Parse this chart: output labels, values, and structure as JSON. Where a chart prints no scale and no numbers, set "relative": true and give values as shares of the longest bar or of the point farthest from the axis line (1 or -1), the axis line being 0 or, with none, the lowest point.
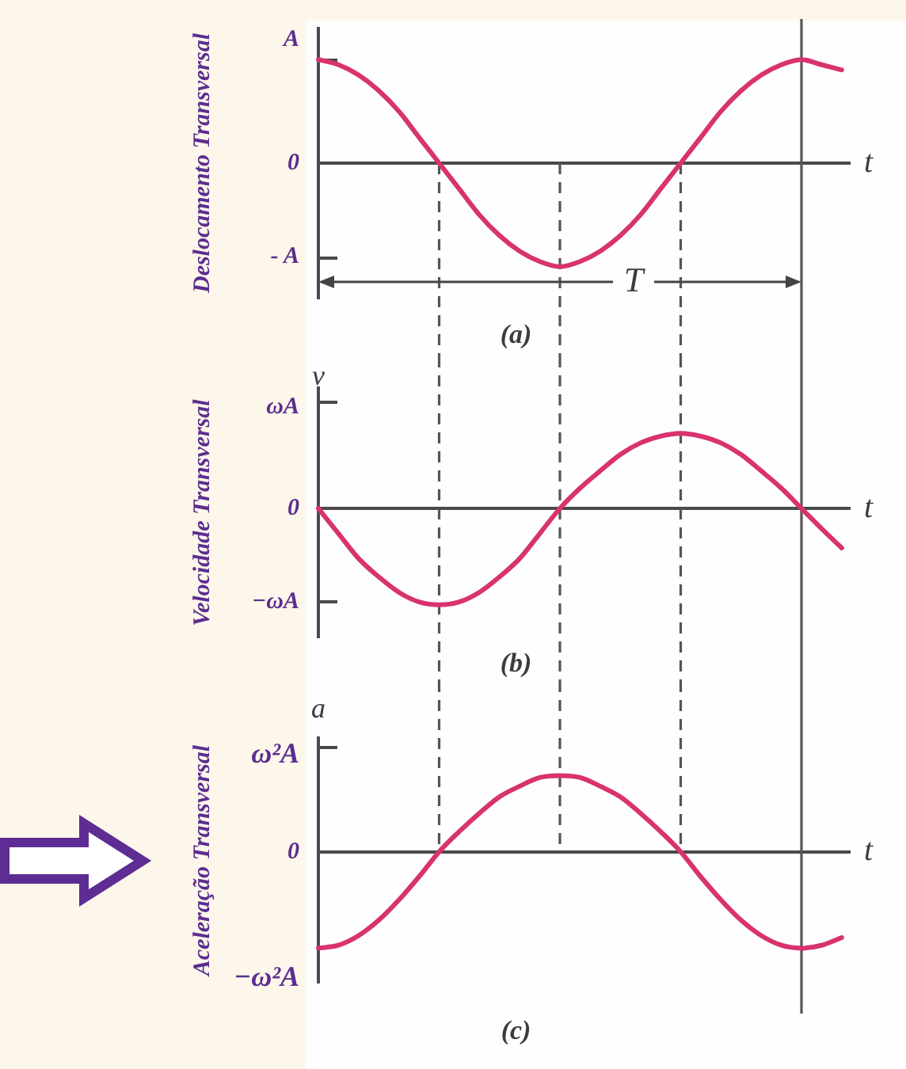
{
  "chart_data": [
    {
      "type": "line",
      "relative": true,
      "title": "(a)",
      "ylabel": "Deslocamento Transversal",
      "xlabel": "t",
      "categories": [
        null,
        null,
        null,
        null,
        null,
        null,
        null,
        null,
        null,
        null,
        null,
        null,
        null,
        null,
        null,
        null,
        null,
        null,
        null,
        null,
        null,
        null,
        null,
        null,
        null,
        null,
        null
      ],
      "values": [
        1,
        0.95,
        0.85,
        0.7,
        0.5,
        0.25,
        0,
        -0.25,
        -0.5,
        -0.7,
        -0.85,
        -0.95,
        -1,
        -0.95,
        -0.85,
        -0.7,
        -0.5,
        -0.25,
        0,
        0.25,
        0.5,
        0.7,
        0.85,
        0.95,
        1,
        0.95,
        0.9
      ],
      "color": "#d8336f",
      "grid": "x",
      "annotations": [
        "A",
        "0",
        "- A",
        "T"
      ]
    },
    {
      "type": "line",
      "relative": true,
      "title": "(b)",
      "ylabel": "Velocidade Transversal",
      "xlabel": "t",
      "categories": [
        null,
        null,
        null,
        null,
        null,
        null,
        null,
        null,
        null,
        null,
        null,
        null,
        null,
        null,
        null,
        null,
        null,
        null,
        null,
        null,
        null,
        null,
        null,
        null,
        null,
        null,
        null
      ],
      "values": [
        0,
        -0.26,
        -0.52,
        -0.71,
        -0.87,
        -0.97,
        -1,
        -0.97,
        -0.87,
        -0.71,
        -0.52,
        -0.26,
        0,
        0.21,
        0.39,
        0.56,
        0.68,
        0.75,
        0.78,
        0.75,
        0.68,
        0.56,
        0.39,
        0.21,
        0,
        -0.21,
        -0.41
      ],
      "color": "#d8336f",
      "grid": "x",
      "annotations": [
        "ωA",
        "0",
        "−ωA",
        "v"
      ]
    },
    {
      "type": "line",
      "relative": true,
      "title": "(c)",
      "ylabel": "Aceleração Transversal",
      "xlabel": "t",
      "categories": [
        null,
        null,
        null,
        null,
        null,
        null,
        null,
        null,
        null,
        null,
        null,
        null,
        null,
        null,
        null,
        null,
        null,
        null,
        null,
        null,
        null,
        null,
        null,
        null,
        null,
        null,
        null
      ],
      "values": [
        -1,
        -0.97,
        -0.87,
        -0.71,
        -0.5,
        -0.26,
        0,
        0.21,
        0.4,
        0.57,
        0.68,
        0.77,
        0.79,
        0.77,
        0.68,
        0.57,
        0.4,
        0.21,
        0,
        -0.26,
        -0.5,
        -0.71,
        -0.87,
        -0.97,
        -1,
        -0.97,
        -0.89
      ],
      "color": "#d8336f",
      "grid": "x",
      "annotations": [
        "ω²A",
        "0",
        "−ω²A",
        "a"
      ]
    }
  ]
}
